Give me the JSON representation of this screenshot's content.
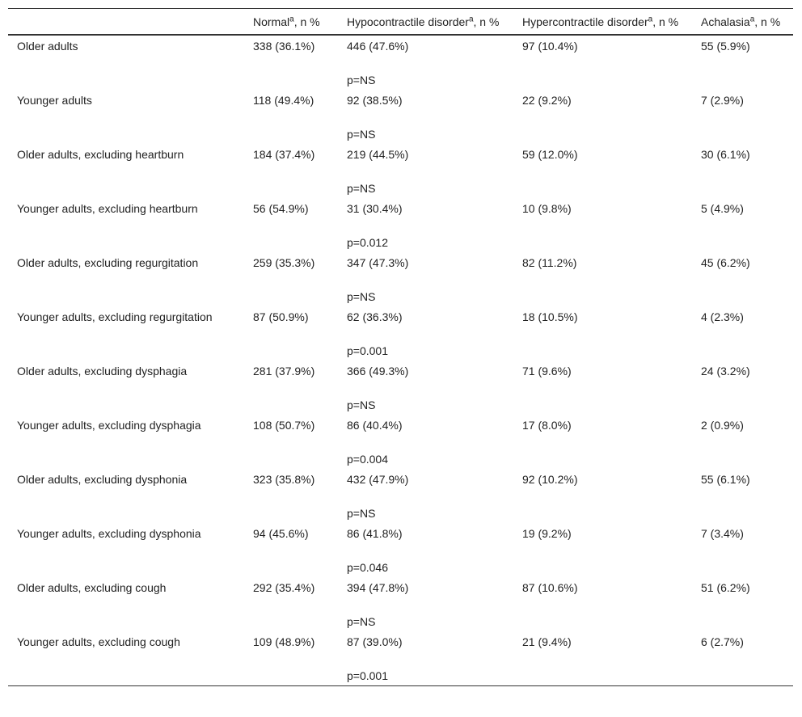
{
  "table": {
    "header": [
      {
        "label": "Normal",
        "sup": "a",
        "suffix": ", n %"
      },
      {
        "label": "Hypocontractile disorder",
        "sup": "a",
        "suffix": ", n %"
      },
      {
        "label": "Hypercontractile disorder",
        "sup": "a",
        "suffix": ", n %"
      },
      {
        "label": "Achalasia",
        "sup": "a",
        "suffix": ", n %"
      }
    ],
    "rows": [
      [
        "Older adults",
        "338 (36.1%)",
        "446 (47.6%)",
        "p=NS",
        "97 (10.4%)",
        "55 (5.9%)"
      ],
      [
        "Younger adults",
        "118 (49.4%)",
        "92 (38.5%)",
        "p=NS",
        "22 (9.2%)",
        "7 (2.9%)"
      ],
      [
        "Older adults, excluding heartburn",
        "184 (37.4%)",
        "219 (44.5%)",
        "p=NS",
        "59 (12.0%)",
        "30 (6.1%)"
      ],
      [
        "Younger adults, excluding heartburn",
        "56 (54.9%)",
        "31 (30.4%)",
        "p=0.012",
        "10 (9.8%)",
        "5 (4.9%)"
      ],
      [
        "Older adults, excluding regurgitation",
        "259 (35.3%)",
        "347 (47.3%)",
        "p=NS",
        "82 (11.2%)",
        "45 (6.2%)"
      ],
      [
        "Younger adults, excluding regurgitation",
        "87 (50.9%)",
        "62 (36.3%)",
        "p=0.001",
        "18 (10.5%)",
        "4 (2.3%)"
      ],
      [
        "Older adults, excluding dysphagia",
        "281 (37.9%)",
        "366 (49.3%)",
        "p=NS",
        "71 (9.6%)",
        "24 (3.2%)"
      ],
      [
        "Younger adults, excluding dysphagia",
        "108 (50.7%)",
        "86 (40.4%)",
        "p=0.004",
        "17 (8.0%)",
        "2 (0.9%)"
      ],
      [
        "Older adults, excluding dysphonia",
        "323 (35.8%)",
        "432 (47.9%)",
        "p=NS",
        "92 (10.2%)",
        "55 (6.1%)"
      ],
      [
        "Younger adults, excluding dysphonia",
        "94 (45.6%)",
        "86 (41.8%)",
        "p=0.046",
        "19 (9.2%)",
        "7 (3.4%)"
      ],
      [
        "Older adults, excluding cough",
        "292 (35.4%)",
        "394 (47.8%)",
        "p=NS",
        "87 (10.6%)",
        "51 (6.2%)"
      ],
      [
        "Younger adults, excluding cough",
        "109 (48.9%)",
        "87 (39.0%)",
        "p=0.001",
        "21 (9.4%)",
        "6 (2.7%)"
      ]
    ]
  }
}
